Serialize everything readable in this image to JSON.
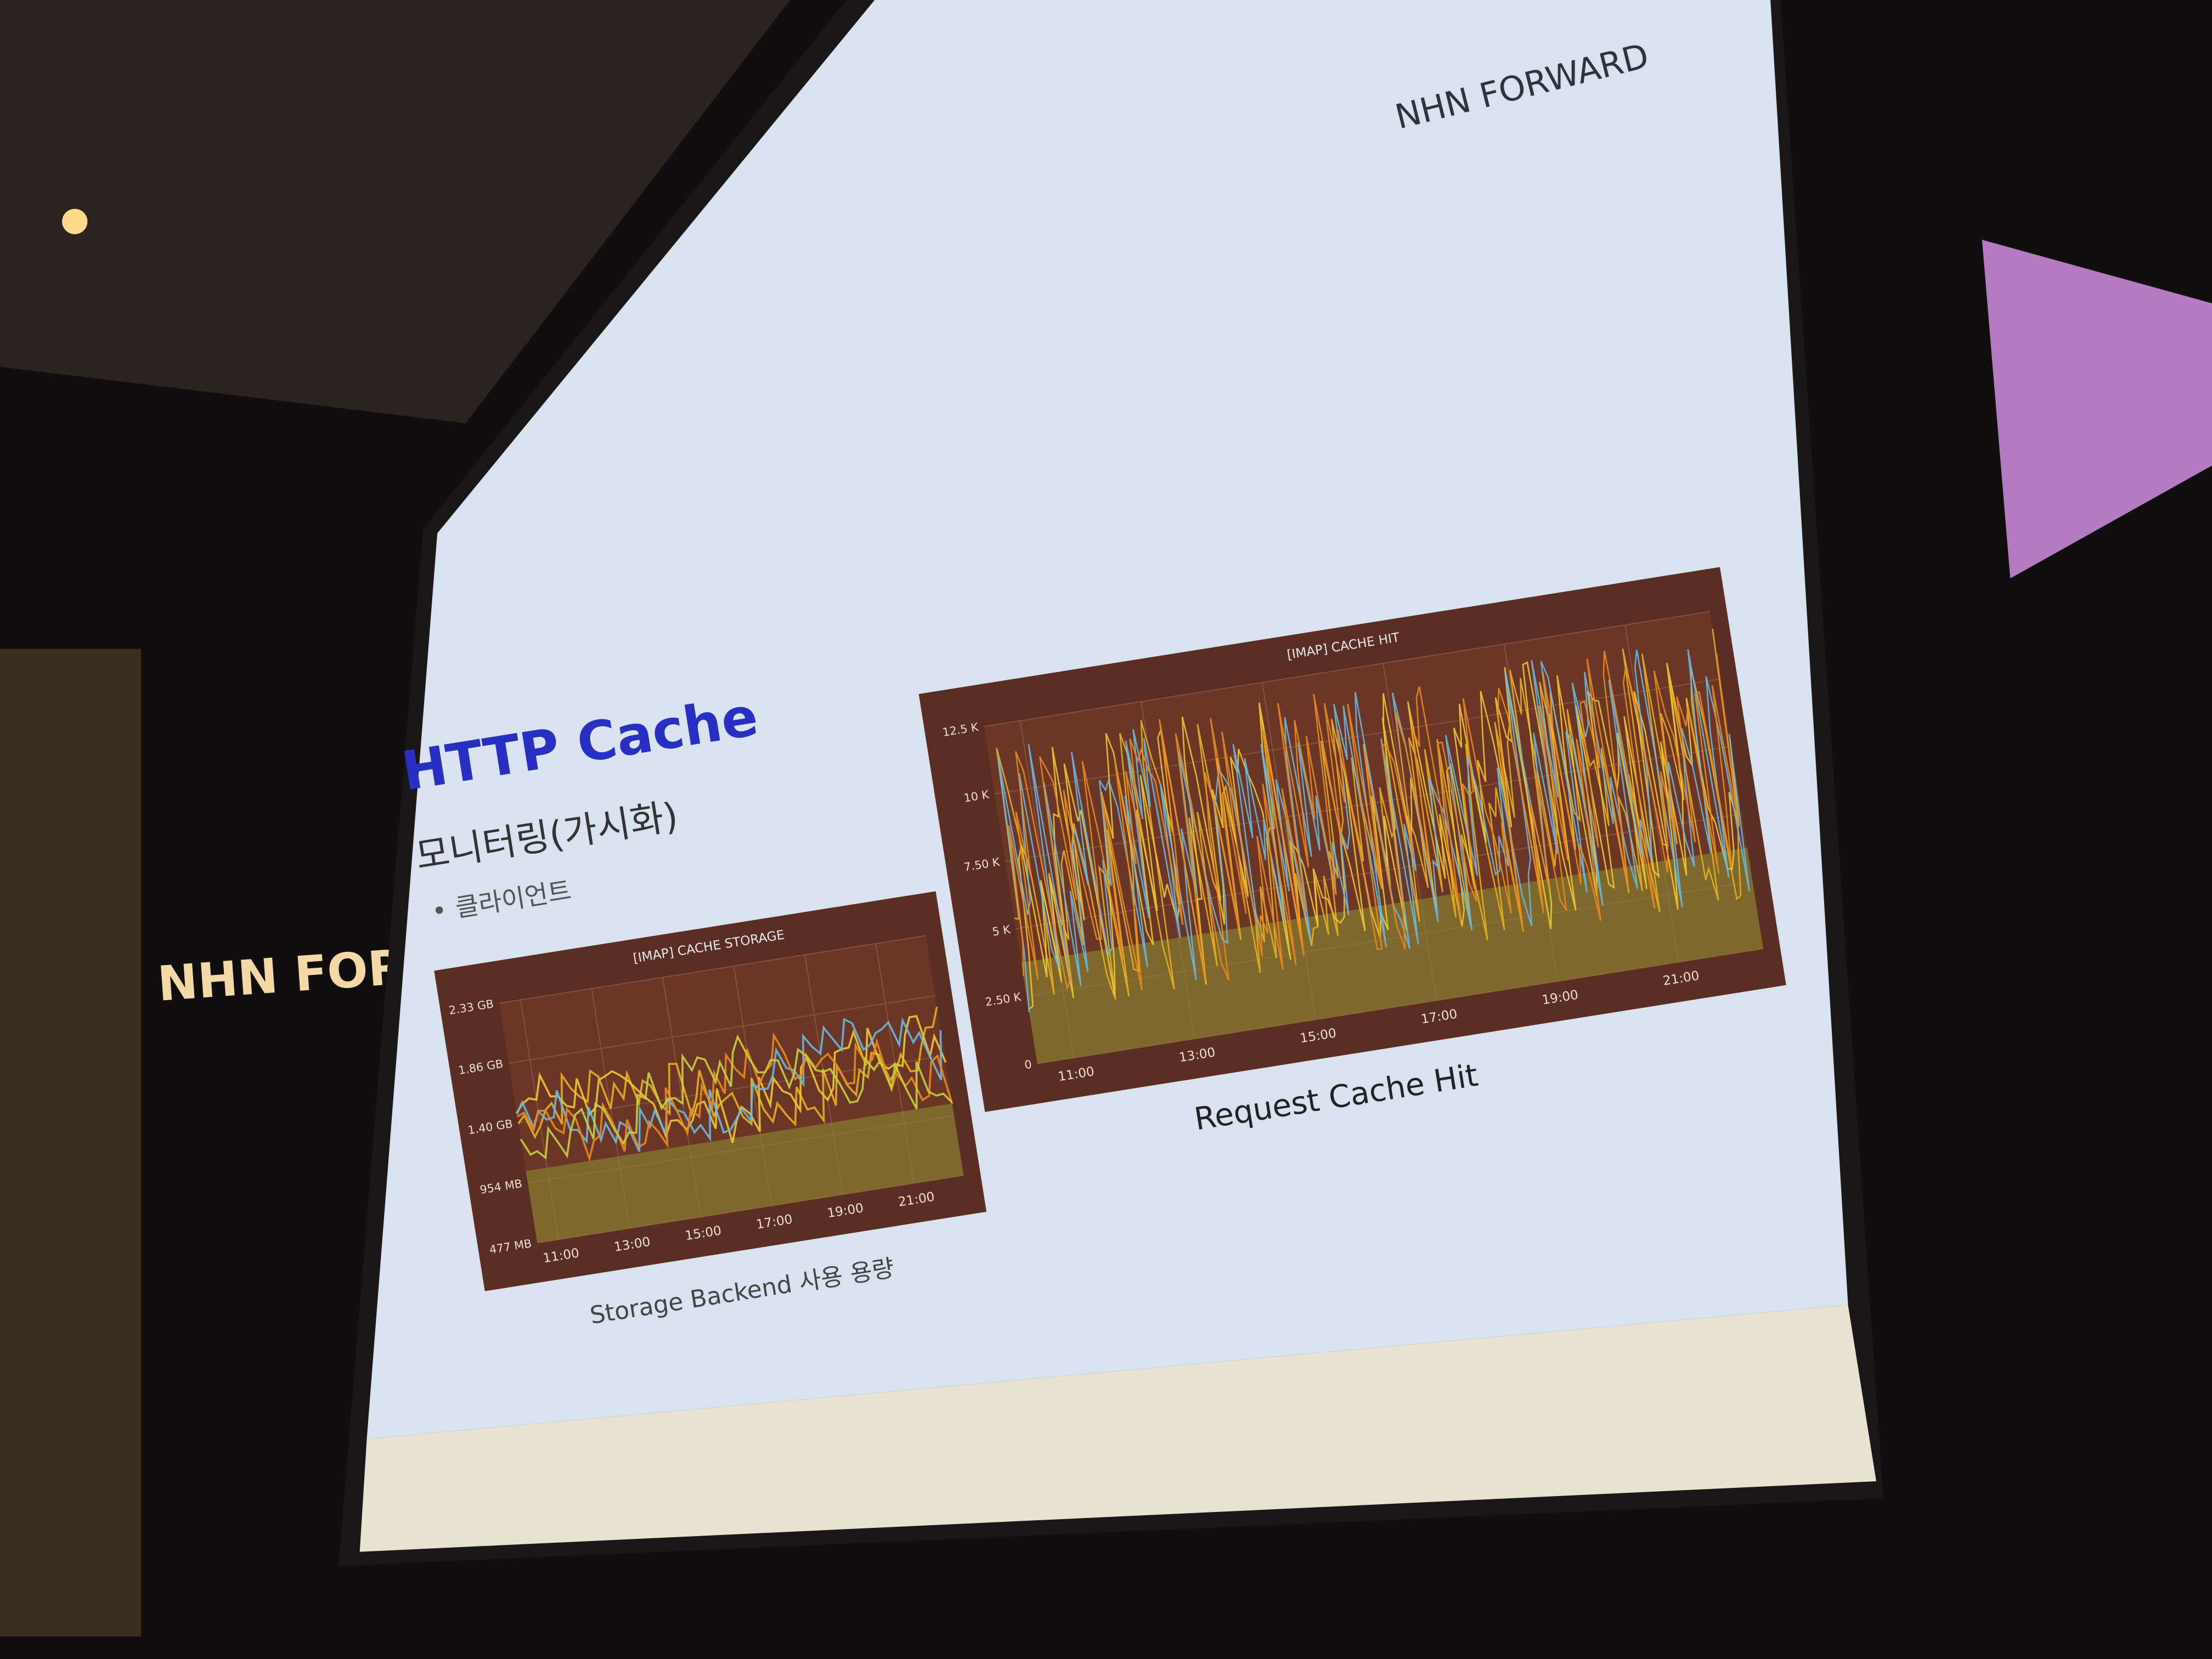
{
  "wall_sign": "NHN FORWARD",
  "slide": {
    "logo": "NHN FORWARD",
    "title": "HTTP Cache",
    "heading": "모니터링(가시화)",
    "bullet": "클라이언트",
    "charts": [
      {
        "title": "[IMAP] CACHE STORAGE",
        "yticks": [
          "477 MB",
          "954 MB",
          "1.40 GB",
          "1.86 GB",
          "2.33 GB"
        ],
        "xticks": [
          "11:00",
          "13:00",
          "15:00",
          "17:00",
          "19:00",
          "21:00"
        ],
        "caption": "Storage Backend 사용 용량"
      },
      {
        "title": "[IMAP] CACHE HIT",
        "yticks": [
          "0",
          "2.50 K",
          "5 K",
          "7.50 K",
          "10 K",
          "12.5 K"
        ],
        "xticks": [
          "11:00",
          "13:00",
          "15:00",
          "17:00",
          "19:00",
          "21:00"
        ],
        "caption": "Request Cache Hit"
      }
    ]
  }
}
